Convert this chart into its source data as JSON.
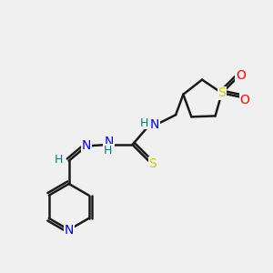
{
  "bg_color": "#f0f0f0",
  "bond_color": "#1a1a1a",
  "bond_width": 1.8,
  "atom_colors": {
    "N": "#0000ff",
    "S_thio": "#cccc00",
    "S_ring": "#cccc00",
    "O": "#ff0000",
    "C": "#1a1a1a",
    "H": "#008080"
  },
  "font_size_atom": 9,
  "font_size_H": 8
}
